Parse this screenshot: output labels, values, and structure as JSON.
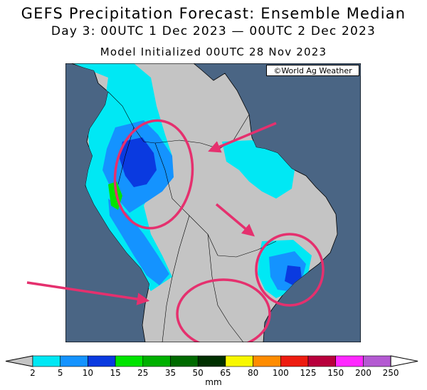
{
  "title": "GEFS Precipitation Forecast: Ensemble Median",
  "subtitle": "Day 3: 00UTC 1 Dec 2023 — 00UTC 2 Dec 2023",
  "init_line": "Model Initialized 00UTC 28 Nov 2023",
  "credit": "©World Ag Weather",
  "colors": {
    "ocean": "#4a6584",
    "land": "#c4c4c4",
    "annotation": "#e5306e"
  },
  "legend": {
    "unit": "mm",
    "ticks": [
      "2",
      "5",
      "10",
      "15",
      "25",
      "35",
      "50",
      "65",
      "80",
      "100",
      "125",
      "150",
      "200",
      "250"
    ],
    "colors": [
      "#00e8f4",
      "#1493ff",
      "#0a3ae0",
      "#00e400",
      "#00b000",
      "#006a00",
      "#003000",
      "#f8f800",
      "#ff8c00",
      "#ee1c10",
      "#b8003c",
      "#ff28ff",
      "#b45ad2"
    ],
    "end_colors": {
      "low": "#c4c4c4",
      "high": "#ffffff"
    }
  }
}
